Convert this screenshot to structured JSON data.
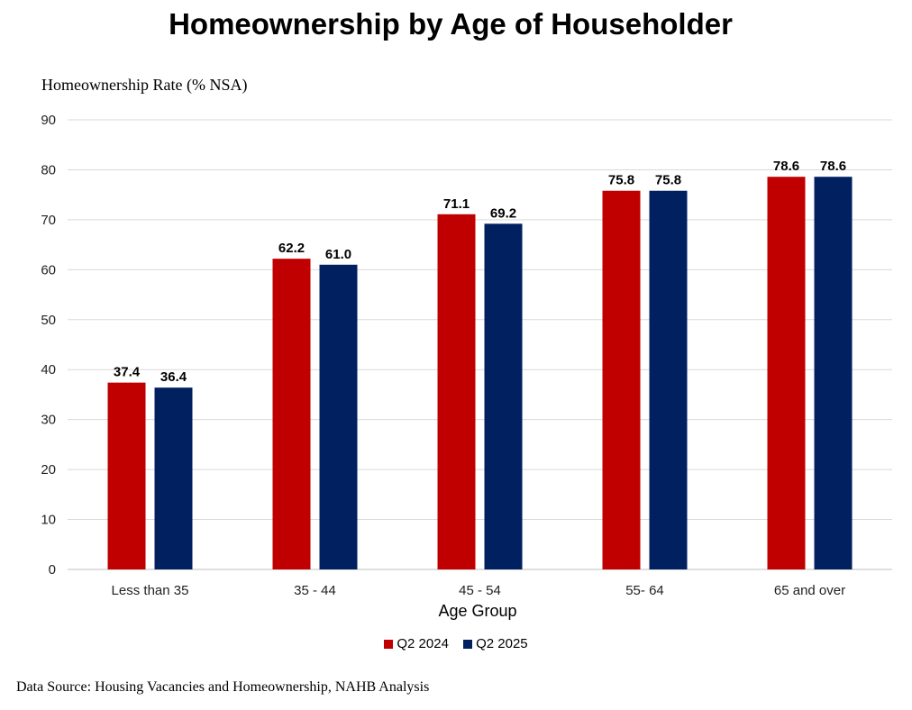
{
  "chart_data": {
    "type": "bar",
    "title": "Homeownership by Age of Householder",
    "ylabel": "Homeownership Rate (% NSA)",
    "xlabel": "Age Group",
    "categories": [
      "Less than 35",
      "35 - 44",
      "45 - 54",
      "55- 64",
      "65 and over"
    ],
    "series": [
      {
        "name": "Q2 2024",
        "color": "#C00000",
        "values": [
          37.4,
          62.2,
          71.1,
          75.8,
          78.6
        ],
        "labels": [
          "37.4",
          "62.2",
          "71.1",
          "75.8",
          "78.6"
        ]
      },
      {
        "name": "Q2 2025",
        "color": "#002060",
        "values": [
          36.4,
          61.0,
          69.2,
          75.8,
          78.6
        ],
        "labels": [
          "36.4",
          "61.0",
          "69.2",
          "75.8",
          "78.6"
        ]
      }
    ],
    "ylim": [
      0,
      90
    ],
    "yticks": [
      0,
      10,
      20,
      30,
      40,
      50,
      60,
      70,
      80,
      90
    ],
    "grid": true,
    "legend_position": "bottom"
  },
  "source": "Data Source: Housing Vacancies and Homeownership, NAHB Analysis"
}
